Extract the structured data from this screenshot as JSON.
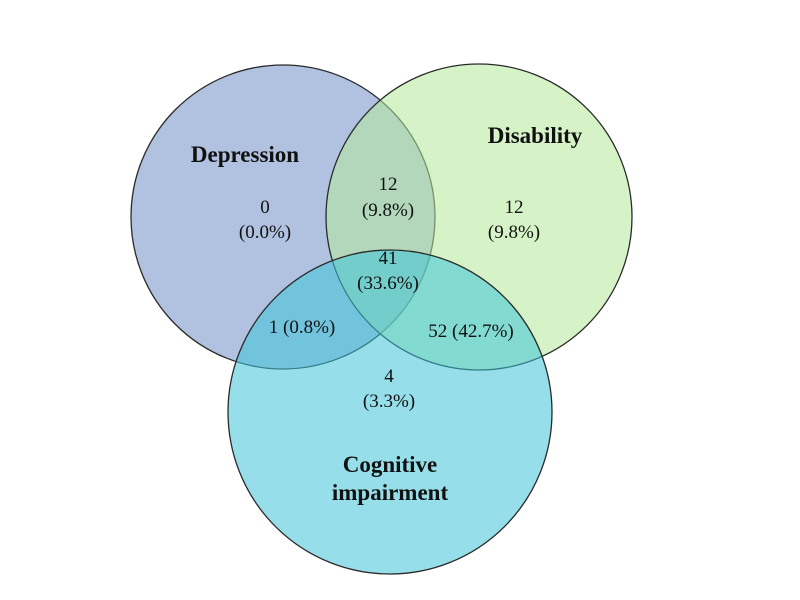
{
  "sets": {
    "depression": {
      "label": "Depression",
      "color": "#6f8fc7"
    },
    "disability": {
      "label": "Disability",
      "color": "#b4ea9a"
    },
    "cognitive": {
      "label_line1": "Cognitive",
      "label_line2": "impairment",
      "color": "#3fc4d8"
    }
  },
  "regions": {
    "depression_only": {
      "count": "0",
      "percent": "(0.0%)"
    },
    "depression_disability": {
      "count": "12",
      "percent": "(9.8%)"
    },
    "disability_only": {
      "count": "12",
      "percent": "(9.8%)"
    },
    "all_three": {
      "count": "41",
      "percent": "(33.6%)"
    },
    "depression_cognitive": {
      "text": "1 (0.8%)"
    },
    "disability_cognitive": {
      "text": "52 (42.7%)"
    },
    "cognitive_only": {
      "count": "4",
      "percent": "(3.3%)"
    }
  }
}
